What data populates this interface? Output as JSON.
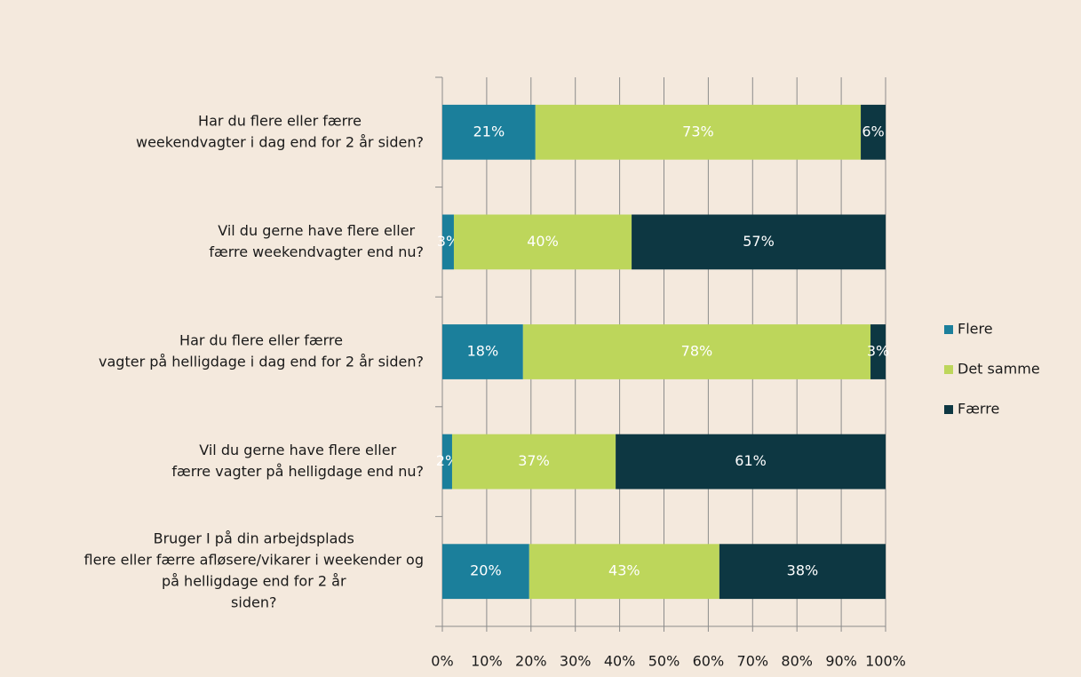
{
  "chart_data": {
    "type": "stacked_barh",
    "categories": [
      [
        "Har du flere eller færre",
        "weekendvagter i dag end for 2 år siden?"
      ],
      [
        "Vil du gerne have flere eller",
        "færre weekendvagter end nu?"
      ],
      [
        "Har du flere eller færre",
        "vagter på helligdage i dag end for 2 år siden?"
      ],
      [
        "Vil du gerne have flere eller",
        "færre vagter på helligdage end nu?"
      ],
      [
        "Bruger I på din arbejdsplads",
        "flere eller færre afløsere/vikarer i weekender og",
        "på helligdage end for 2 år",
        "siden?"
      ]
    ],
    "series": [
      {
        "name": "Flere",
        "color": "#1b7f9b",
        "values": [
          21,
          2.6,
          18.2,
          2.2,
          19.6
        ],
        "value_labels": [
          "21%",
          "3%",
          "18%",
          "2%",
          "20%"
        ]
      },
      {
        "name": "Det samme",
        "color": "#bdd65b",
        "values": [
          73.4,
          40.1,
          78.4,
          36.9,
          42.9
        ],
        "value_labels": [
          "73%",
          "40%",
          "78%",
          "37%",
          "43%"
        ]
      },
      {
        "name": "Færre",
        "color": "#0d3742",
        "values": [
          5.6,
          57.3,
          3.4,
          60.9,
          37.5
        ],
        "value_labels": [
          "6%",
          "57%",
          "3%",
          "61%",
          "38%"
        ]
      }
    ],
    "xlim": [
      0,
      100
    ],
    "xticks": [
      {
        "value": 0,
        "label": "0%"
      },
      {
        "value": 10,
        "label": "10%"
      },
      {
        "value": 20,
        "label": "20%"
      },
      {
        "value": 30,
        "label": "30%"
      },
      {
        "value": 40,
        "label": "40%"
      },
      {
        "value": 50,
        "label": "50%"
      },
      {
        "value": 60,
        "label": "60%"
      },
      {
        "value": 70,
        "label": "70%"
      },
      {
        "value": 80,
        "label": "80%"
      },
      {
        "value": 90,
        "label": "90%"
      },
      {
        "value": 100,
        "label": "100%"
      }
    ],
    "grid": true,
    "legend": "right"
  }
}
